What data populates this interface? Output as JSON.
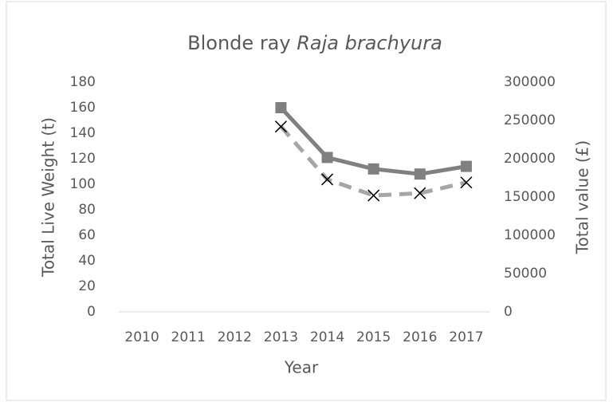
{
  "chart_data": {
    "type": "line",
    "title": {
      "common": "Blonde ray",
      "species": "Raja brachyura"
    },
    "x_label": "Year",
    "y_label": "Total Live Weight (t)",
    "y2_label": "Total value (£)",
    "categories": [
      "2010",
      "2011",
      "2012",
      "2013",
      "2014",
      "2015",
      "2016",
      "2017"
    ],
    "series": [
      {
        "color": "#808080",
        "marker": "square",
        "dash": false,
        "values": [
          null,
          null,
          null,
          160,
          121,
          112,
          108,
          114
        ]
      },
      {
        "color": "#a6a6a6",
        "marker": "x",
        "marker_color": "#000000",
        "dash": true,
        "axis": "y2",
        "values": [
          null,
          null,
          null,
          242000,
          173000,
          152000,
          155000,
          169000
        ]
      }
    ],
    "ylim": [
      0,
      180
    ],
    "yticks": [
      0,
      20,
      40,
      60,
      80,
      100,
      120,
      140,
      160,
      180
    ],
    "y2lim": [
      0,
      300000
    ],
    "y2ticks": [
      0,
      50000,
      100000,
      150000,
      200000,
      250000,
      300000
    ],
    "grid": false
  }
}
